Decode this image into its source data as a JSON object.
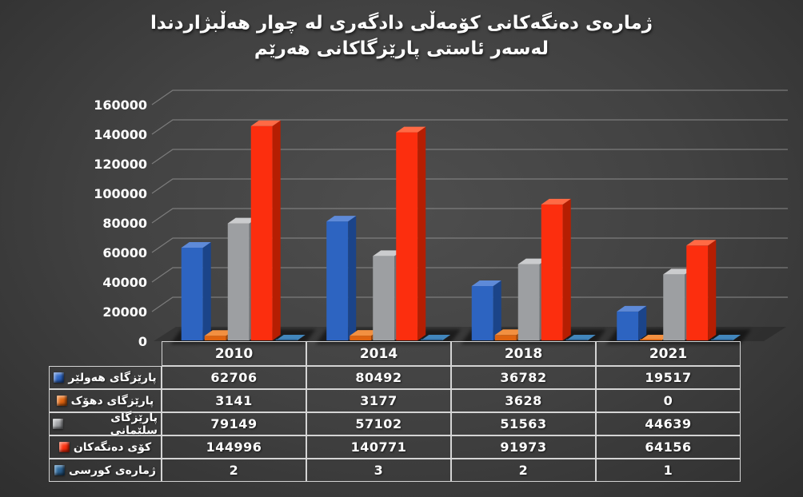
{
  "title": {
    "line1": "ژمارەی دەنگەکانی کۆمەڵی دادگەری لە چوار هەڵبژاردندا",
    "line2": "لەسەر ئاستی پارێزگاکانی هەرێم"
  },
  "chart_data": {
    "type": "bar",
    "variant": "3d-clustered-column-with-data-table",
    "categories": [
      "2010",
      "2014",
      "2018",
      "2021"
    ],
    "series": [
      {
        "name": "پارێزگای هەولێر",
        "color": "#2D64C1",
        "color_top": "#5E8AD8",
        "color_side": "#1B4489",
        "values": [
          62706,
          80492,
          36782,
          19517
        ]
      },
      {
        "name": "پارێزگای دهۆک",
        "color": "#DE6310",
        "color_top": "#F29041",
        "color_side": "#9E4708",
        "values": [
          3141,
          3177,
          3628,
          0
        ]
      },
      {
        "name": "پارێزگای سلێمانی",
        "color": "#9D9FA2",
        "color_top": "#CBCCCE",
        "color_side": "#6F7174",
        "values": [
          79149,
          57102,
          51563,
          44639
        ]
      },
      {
        "name": "کۆی دەنگەکان",
        "color": "#FC2E0E",
        "color_top": "#FF6A45",
        "color_side": "#B51E02",
        "values": [
          144996,
          140771,
          91973,
          64156
        ]
      },
      {
        "name": "ژمارەی کورسی",
        "color": "#2B5F8E",
        "color_top": "#4286BC",
        "color_side": "#173D5F",
        "values": [
          2,
          3,
          2,
          1
        ]
      }
    ],
    "ylim": [
      0,
      160000
    ],
    "ytick_step": 20000,
    "grid": true,
    "legend_position": "table-rows-left",
    "background_color": "#3f3f3f",
    "text_color": "#ffffff",
    "gridline_color": "#8f8f8f"
  }
}
